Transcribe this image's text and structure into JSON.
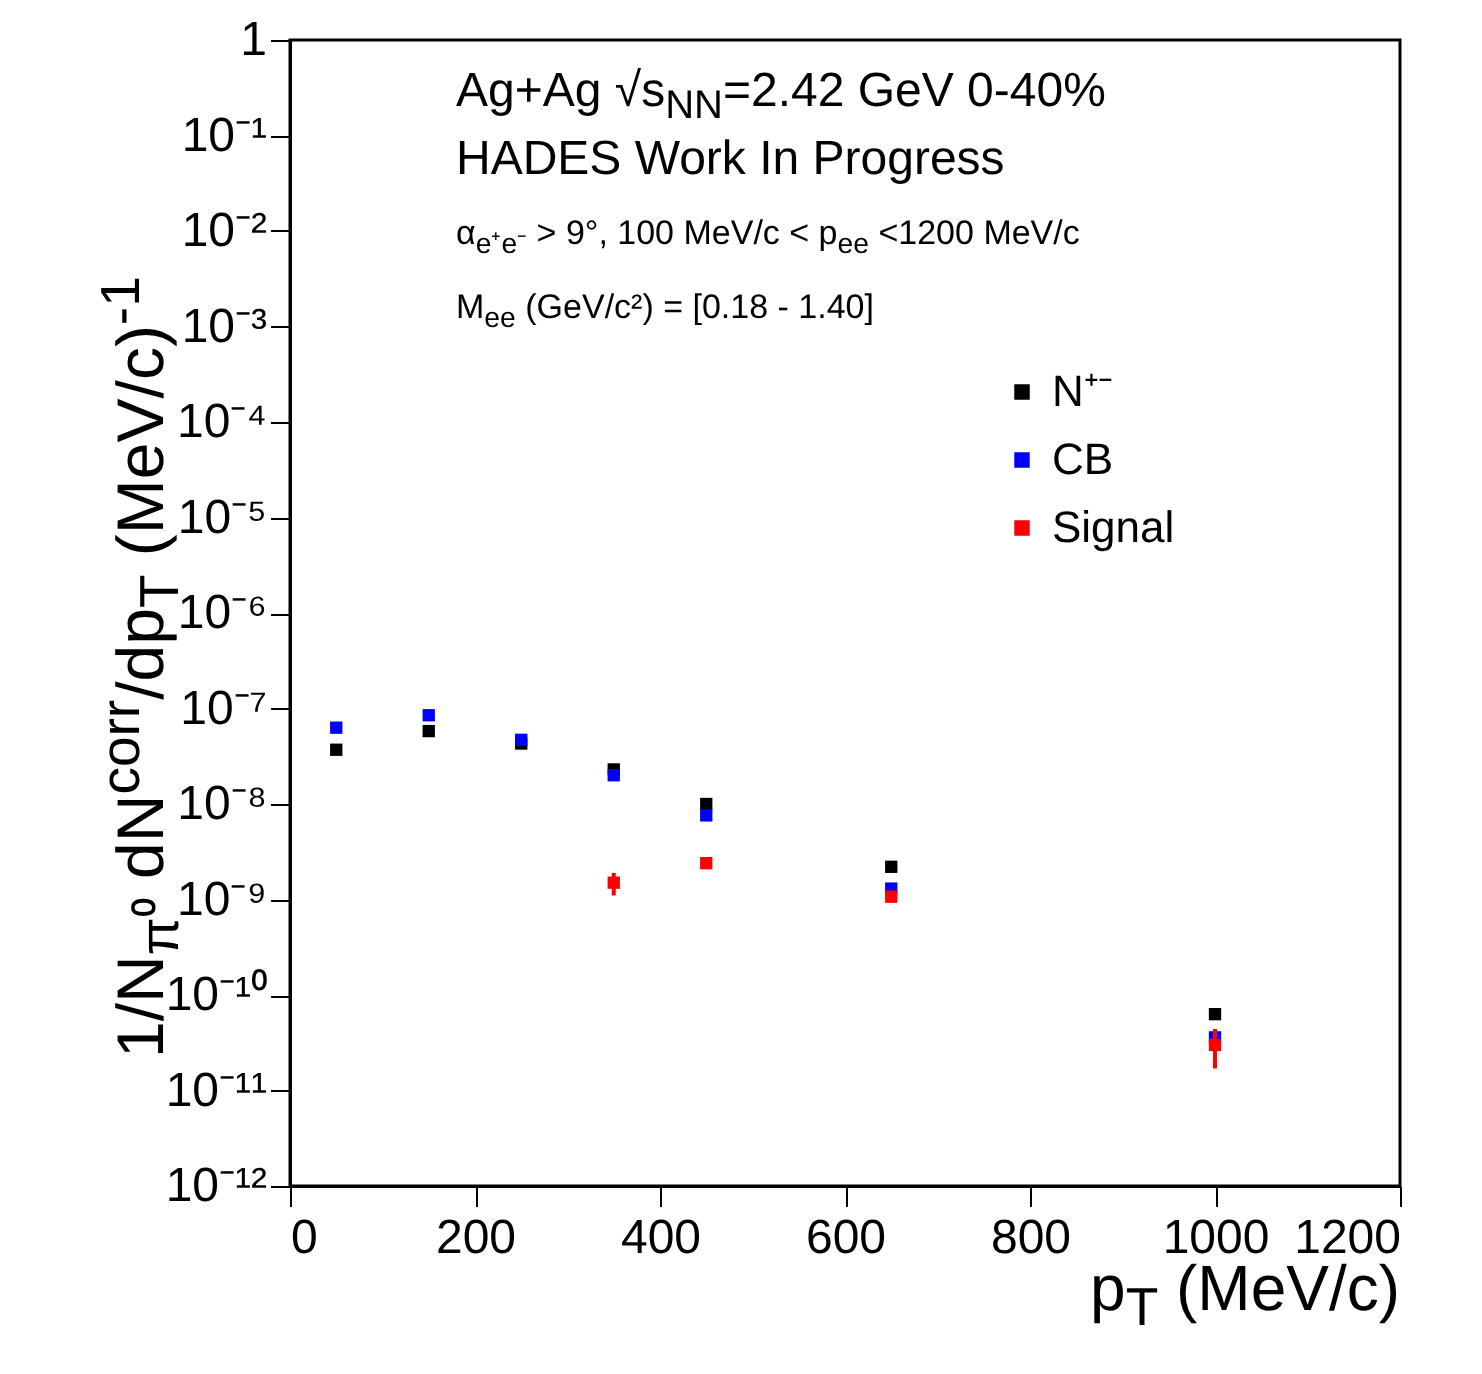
{
  "chart_data": {
    "type": "scatter",
    "annotations": [
      "Ag+Ag √s$_{NN}$=2.42 GeV 0-40%",
      "HADES Work In Progress",
      "α$_{e⁺e⁻}$ > 9°, 100 MeV/c < p$_{ee}$ <1200 MeV/c",
      "M$_{ee}$ (GeV/c²) = [0.18 - 1.40]"
    ],
    "xlabel": "p$_{T}$ (MeV/c)",
    "ylabel": "1/N$_{π⁰}$ dN$^{corr}$/dp$_{T}$ (MeV/c)$^{-1}$",
    "series": [
      {
        "name": "N⁺⁻",
        "color": "#000000",
        "x": [
          50,
          150,
          250,
          350,
          450,
          650,
          1000
        ],
        "values": [
          3.7e-08,
          5.8e-08,
          4.3e-08,
          2.3e-08,
          1e-08,
          2.2e-09,
          6.3e-11
        ]
      },
      {
        "name": "CB",
        "color": "#0000ff",
        "x": [
          50,
          150,
          250,
          350,
          450,
          650,
          1000
        ],
        "values": [
          6.3e-08,
          8.5e-08,
          4.7e-08,
          2e-08,
          7.6e-09,
          1.3e-09,
          3.6e-11
        ]
      },
      {
        "name": "Signal",
        "color": "#ff0000",
        "x": [
          350,
          450,
          650,
          1000
        ],
        "values": [
          1.5e-09,
          2.4e-09,
          1.07e-09,
          3e-11
        ],
        "errors": [
          [
            1.1e-09,
            1.9e-09
          ],
          null,
          null,
          [
            1.7e-11,
            4.4e-11
          ]
        ]
      }
    ],
    "xlim": [
      0,
      1200
    ],
    "xticks": [
      0,
      200,
      400,
      600,
      800,
      1000,
      1200
    ],
    "ylim": [
      1e-12,
      1
    ],
    "log": true,
    "yticks": [
      {
        "value": 1e-12,
        "label": "10⁻¹²"
      },
      {
        "value": 1e-11,
        "label": "10⁻¹¹"
      },
      {
        "value": 1e-10,
        "label": "10⁻¹⁰"
      },
      {
        "value": 1e-09,
        "label": "10⁻⁹"
      },
      {
        "value": 1e-08,
        "label": "10⁻⁸"
      },
      {
        "value": 1e-07,
        "label": "10⁻⁷"
      },
      {
        "value": 1e-06,
        "label": "10⁻⁶"
      },
      {
        "value": 1e-05,
        "label": "10⁻⁵"
      },
      {
        "value": 0.0001,
        "label": "10⁻⁴"
      },
      {
        "value": 0.001,
        "label": "10⁻³"
      },
      {
        "value": 0.01,
        "label": "10⁻²"
      },
      {
        "value": 0.1,
        "label": "10⁻¹"
      },
      1
    ],
    "legend": "top right",
    "marker": "square",
    "grid": false
  }
}
